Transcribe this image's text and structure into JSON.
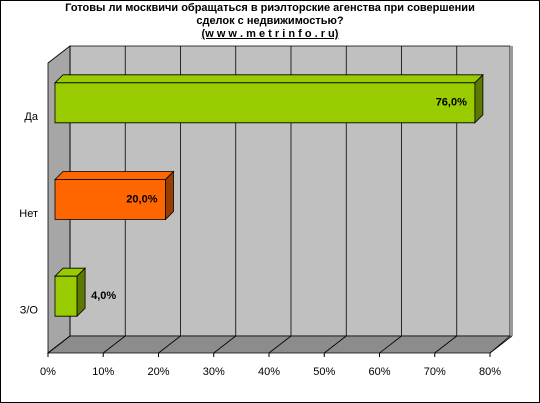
{
  "chart_data": {
    "type": "bar3d-horizontal",
    "title": "Готовы ли москвичи обращаться в риэлторские агенства при совершении сделок с недвижимостью?",
    "subtitle": "(w w w . m e t r i n f o . r u)",
    "categories": [
      "Да",
      "Нет",
      "З/О"
    ],
    "values": [
      76,
      20,
      4
    ],
    "value_labels": [
      "76,0%",
      "20,0%",
      "4,0%"
    ],
    "colors": [
      "#99cc00",
      "#ff6600",
      "#99cc00"
    ],
    "xlim": [
      0,
      80
    ],
    "xticks": [
      {
        "value": 0,
        "label": "0%"
      },
      {
        "value": 10,
        "label": "10%"
      },
      {
        "value": 20,
        "label": "20%"
      },
      {
        "value": 30,
        "label": "30%"
      },
      {
        "value": 40,
        "label": "40%"
      },
      {
        "value": 50,
        "label": "50%"
      },
      {
        "value": 60,
        "label": "60%"
      },
      {
        "value": 70,
        "label": "70%"
      },
      {
        "value": 80,
        "label": "80%"
      }
    ],
    "grid": true
  }
}
